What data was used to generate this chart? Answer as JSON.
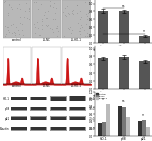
{
  "panel_top_bar": {
    "categories": [
      "control",
      "LV-NC",
      "LV-HO-1"
    ],
    "values": [
      0.82,
      0.8,
      0.18
    ],
    "errors": [
      0.05,
      0.05,
      0.02
    ],
    "bar_color": "#555555",
    "ylim": [
      0,
      1.1
    ],
    "sig": [
      null,
      "ns",
      "**"
    ]
  },
  "panel_mid_bar": {
    "categories": [
      "control",
      "LV-NC",
      "LV-HO-1"
    ],
    "values": [
      0.75,
      0.78,
      0.68
    ],
    "errors": [
      0.04,
      0.04,
      0.04
    ],
    "bar_color": "#555555",
    "ylim": [
      0.0,
      1.05
    ],
    "sig": [
      null,
      null,
      null
    ]
  },
  "panel_bot_bar": {
    "groups": [
      "HO-1",
      "p38",
      "p21"
    ],
    "series": [
      {
        "label": "control",
        "color": "#333333",
        "values": [
          0.35,
          0.82,
          0.4
        ]
      },
      {
        "label": "LV-NC",
        "color": "#777777",
        "values": [
          0.38,
          0.8,
          0.42
        ]
      },
      {
        "label": "LV-HO-1",
        "color": "#bbbbbb",
        "values": [
          0.88,
          0.52,
          0.25
        ]
      }
    ],
    "ylim": [
      0.0,
      1.2
    ],
    "sig_groups": [
      "**",
      "ns",
      "**"
    ]
  },
  "microscopy_color": "#b8b8b8",
  "microscopy_dot_color": "#888888",
  "flow_bg": "#ffffff",
  "flow_peak_color": "#cc1111",
  "wb_bg": "#aaaaaa",
  "wb_band_color": "#222222",
  "background_color": "#ffffff"
}
